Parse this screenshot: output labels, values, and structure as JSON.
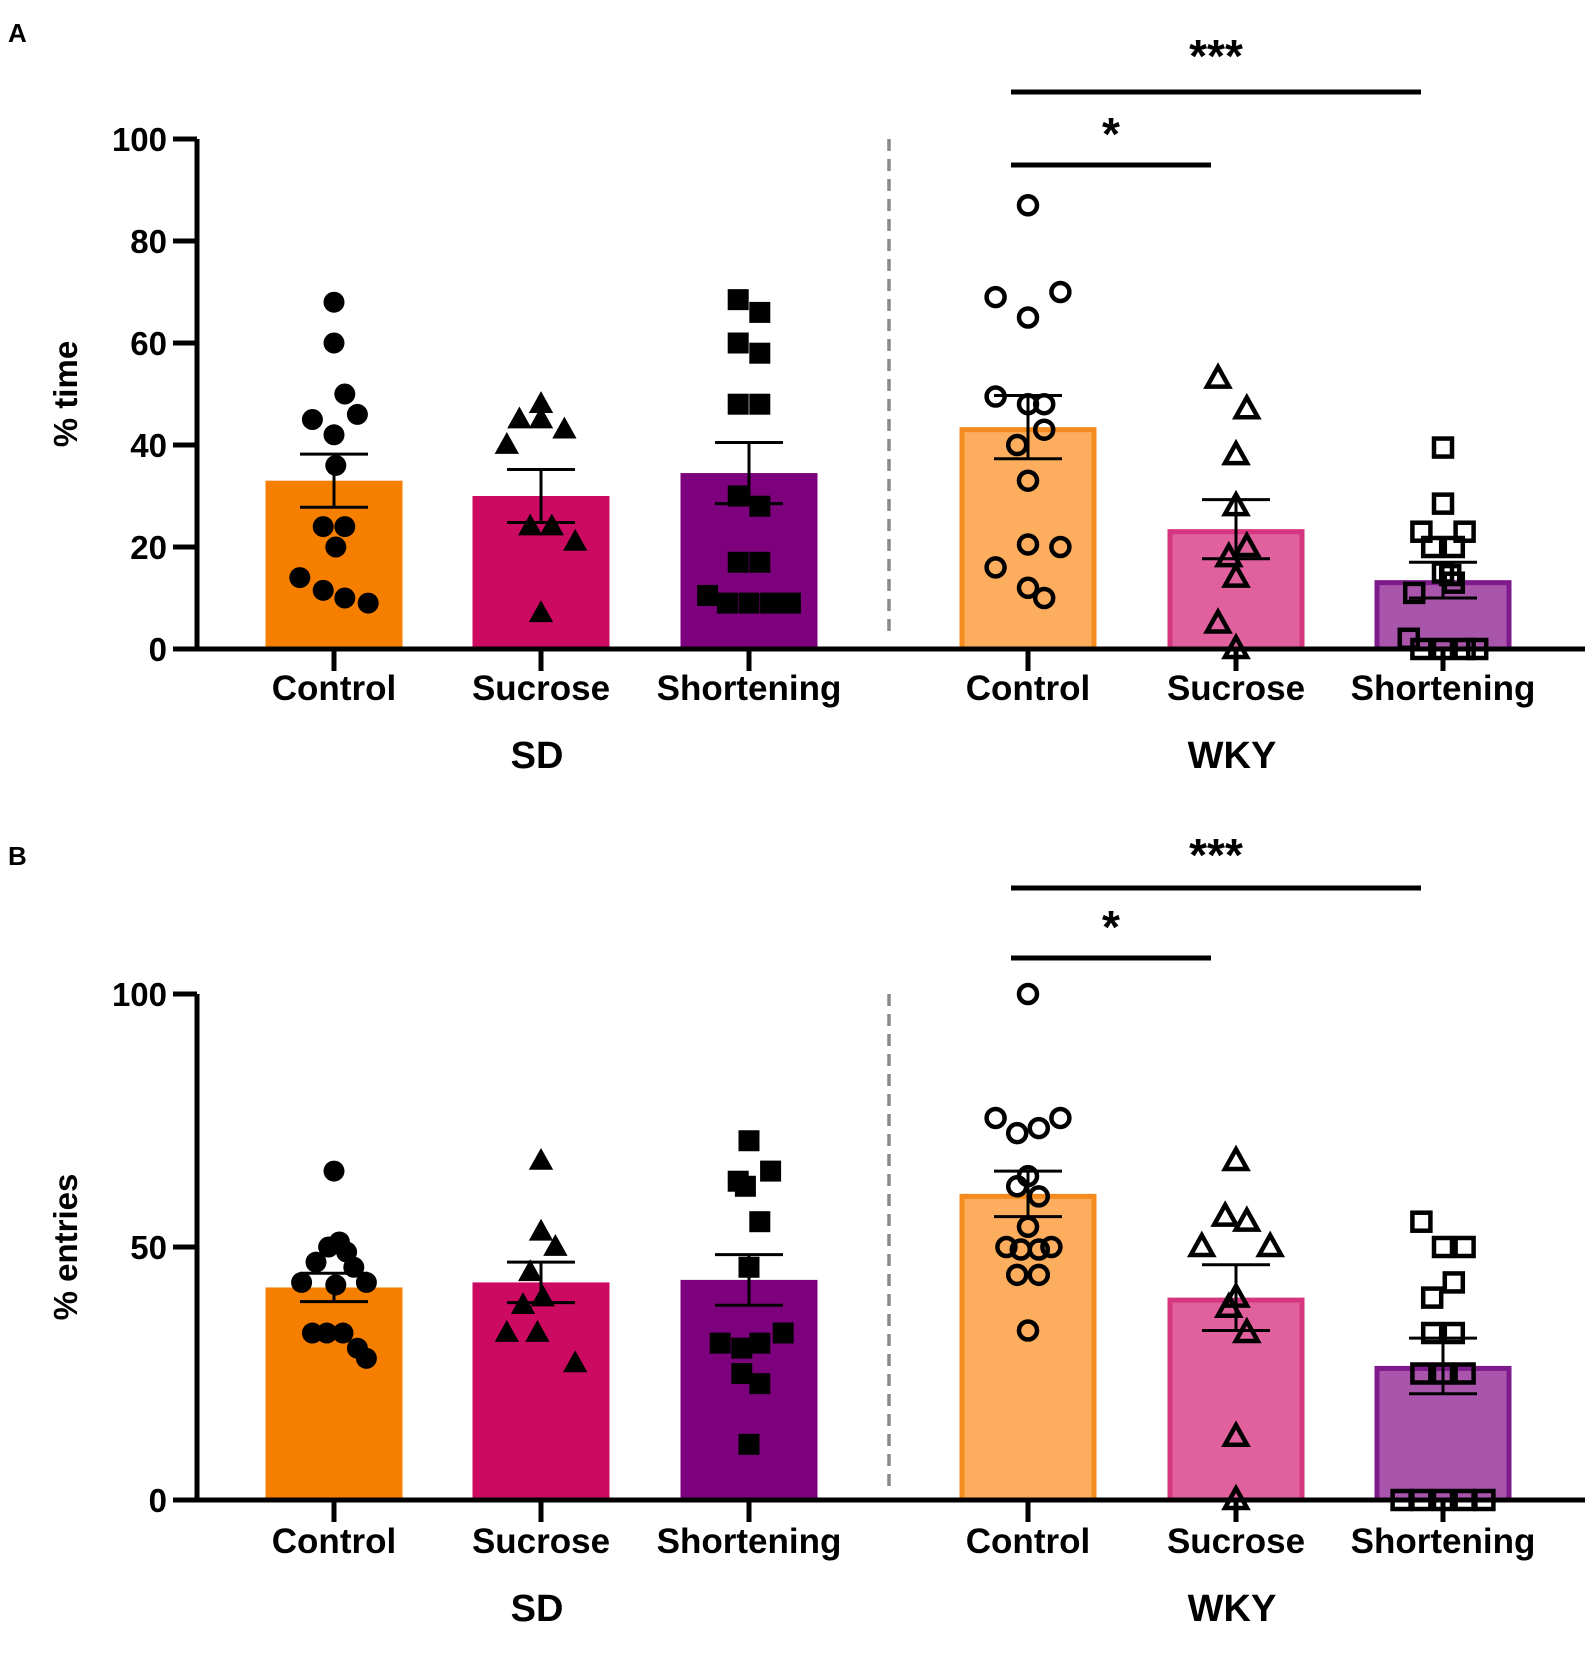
{
  "chart_data": [
    {
      "panel_label": "A",
      "type": "bar",
      "ylabel": "% time",
      "ylim": [
        0,
        100
      ],
      "yticks": [
        0,
        20,
        40,
        60,
        80,
        100
      ],
      "groups": [
        {
          "label": "SD",
          "strain": "SD",
          "bars": [
            {
              "category": "Control",
              "mean": 33,
              "sem": 5.2,
              "fill": "#F77F00",
              "edge": "#F77F00",
              "marker": "circle",
              "filled": true,
              "points": [
                [
                  0,
                  68
                ],
                [
                  0,
                  60
                ],
                [
                  0.3,
                  50
                ],
                [
                  -0.6,
                  45
                ],
                [
                  0.65,
                  46
                ],
                [
                  0,
                  42
                ],
                [
                  0.05,
                  36
                ],
                [
                  -0.3,
                  24
                ],
                [
                  0.3,
                  24
                ],
                [
                  0.05,
                  20
                ],
                [
                  -0.95,
                  14
                ],
                [
                  -0.3,
                  11.5
                ],
                [
                  0.3,
                  10
                ],
                [
                  0.95,
                  9
                ]
              ]
            },
            {
              "category": "Sucrose",
              "mean": 30,
              "sem": 5.2,
              "fill": "#CC0A62",
              "edge": "#CC0A62",
              "marker": "triangle",
              "filled": true,
              "points": [
                [
                  0,
                  48
                ],
                [
                  -0.6,
                  45
                ],
                [
                  0,
                  45
                ],
                [
                  0.65,
                  43
                ],
                [
                  -0.95,
                  40
                ],
                [
                  -0.3,
                  24
                ],
                [
                  0.3,
                  24
                ],
                [
                  0.95,
                  21
                ],
                [
                  0,
                  7
                ]
              ]
            },
            {
              "category": "Shortening",
              "mean": 34.5,
              "sem": 6,
              "fill": "#7D017D",
              "edge": "#7D017D",
              "marker": "square",
              "filled": true,
              "points": [
                [
                  -0.3,
                  68.5
                ],
                [
                  0.3,
                  66
                ],
                [
                  -0.3,
                  60
                ],
                [
                  0.3,
                  58
                ],
                [
                  -0.3,
                  48
                ],
                [
                  0.3,
                  48
                ],
                [
                  -0.3,
                  30
                ],
                [
                  0.3,
                  28
                ],
                [
                  -0.3,
                  17
                ],
                [
                  0.3,
                  17
                ],
                [
                  -1.15,
                  10.5
                ],
                [
                  -0.6,
                  9
                ],
                [
                  0,
                  9
                ],
                [
                  0.6,
                  9
                ],
                [
                  1.15,
                  9
                ]
              ]
            }
          ]
        },
        {
          "label": "WKY",
          "strain": "WKY",
          "bars": [
            {
              "category": "Control",
              "mean": 43.5,
              "sem": 6.2,
              "fill": "#FCAE5E",
              "edge": "#F58B1E",
              "marker": "circle",
              "filled": false,
              "points": [
                [
                  0,
                  87
                ],
                [
                  -0.9,
                  69
                ],
                [
                  0.9,
                  70
                ],
                [
                  0,
                  65
                ],
                [
                  -0.9,
                  49.5
                ],
                [
                  0,
                  48
                ],
                [
                  0.45,
                  48
                ],
                [
                  0.45,
                  43
                ],
                [
                  -0.3,
                  40
                ],
                [
                  0,
                  33
                ],
                [
                  -0.9,
                  16
                ],
                [
                  0,
                  20.5
                ],
                [
                  0.9,
                  20
                ],
                [
                  0,
                  12
                ],
                [
                  0.45,
                  10
                ]
              ]
            },
            {
              "category": "Sucrose",
              "mean": 23.5,
              "sem": 5.8,
              "fill": "#E0619E",
              "edge": "#D6357F",
              "marker": "triangle",
              "filled": false,
              "points": [
                [
                  -0.5,
                  53
                ],
                [
                  0.3,
                  47
                ],
                [
                  0,
                  38
                ],
                [
                  0,
                  28
                ],
                [
                  0.3,
                  20
                ],
                [
                  -0.2,
                  18
                ],
                [
                  0,
                  14
                ],
                [
                  -0.5,
                  5
                ],
                [
                  0,
                  0
                ]
              ]
            },
            {
              "category": "Shortening",
              "mean": 13.5,
              "sem": 3.5,
              "fill": "#A855AB",
              "edge": "#7E1A8C",
              "marker": "square",
              "filled": false,
              "points": [
                [
                  0,
                  39.5
                ],
                [
                  0,
                  28.5
                ],
                [
                  -0.6,
                  23
                ],
                [
                  0.6,
                  23
                ],
                [
                  -0.3,
                  20
                ],
                [
                  0.3,
                  20
                ],
                [
                  0,
                  15
                ],
                [
                  0.2,
                  14.5
                ],
                [
                  0.3,
                  13
                ],
                [
                  -0.8,
                  11
                ],
                [
                  -0.95,
                  2
                ],
                [
                  -0.6,
                  0
                ],
                [
                  0,
                  0
                ],
                [
                  0.6,
                  0
                ],
                [
                  0.95,
                  0
                ]
              ]
            }
          ]
        }
      ],
      "significance": [
        {
          "from": "WKY Control",
          "to": "WKY Sucrose",
          "label": "*"
        },
        {
          "from": "WKY Control",
          "to": "WKY Shortening",
          "label": "***"
        }
      ]
    },
    {
      "panel_label": "B",
      "type": "bar",
      "ylabel": "% entries",
      "ylim": [
        0,
        100
      ],
      "yticks": [
        0,
        50,
        100
      ],
      "groups": [
        {
          "label": "SD",
          "strain": "SD",
          "bars": [
            {
              "category": "Control",
              "mean": 42,
              "sem": 2.8,
              "fill": "#F77F00",
              "edge": "#F77F00",
              "marker": "circle",
              "filled": true,
              "points": [
                [
                  0,
                  65
                ],
                [
                  0.15,
                  51
                ],
                [
                  -0.15,
                  50
                ],
                [
                  0.35,
                  49
                ],
                [
                  -0.5,
                  47
                ],
                [
                  0.55,
                  46
                ],
                [
                  -0.9,
                  43
                ],
                [
                  0.05,
                  42.5
                ],
                [
                  0.9,
                  43
                ],
                [
                  -0.6,
                  33
                ],
                [
                  -0.2,
                  33
                ],
                [
                  0.25,
                  33
                ],
                [
                  0.65,
                  30
                ],
                [
                  0.9,
                  28
                ]
              ]
            },
            {
              "category": "Sucrose",
              "mean": 43,
              "sem": 4,
              "fill": "#CC0A62",
              "edge": "#CC0A62",
              "marker": "triangle",
              "filled": true,
              "points": [
                [
                  0,
                  67
                ],
                [
                  0,
                  53
                ],
                [
                  0.4,
                  50
                ],
                [
                  -0.3,
                  45
                ],
                [
                  0.05,
                  40
                ],
                [
                  -0.5,
                  38.5
                ],
                [
                  -0.95,
                  33
                ],
                [
                  -0.1,
                  33
                ],
                [
                  0.95,
                  27
                ]
              ]
            },
            {
              "category": "Shortening",
              "mean": 43.5,
              "sem": 5,
              "fill": "#7D017D",
              "edge": "#7D017D",
              "marker": "square",
              "filled": true,
              "points": [
                [
                  0,
                  71
                ],
                [
                  -0.3,
                  63
                ],
                [
                  0.6,
                  65
                ],
                [
                  -0.1,
                  62
                ],
                [
                  0.3,
                  55
                ],
                [
                  0,
                  46
                ],
                [
                  -0.8,
                  31
                ],
                [
                  -0.2,
                  30
                ],
                [
                  0.3,
                  31
                ],
                [
                  0.95,
                  33
                ],
                [
                  -0.2,
                  25
                ],
                [
                  0.3,
                  23
                ],
                [
                  0,
                  11
                ]
              ]
            }
          ]
        },
        {
          "label": "WKY",
          "strain": "WKY",
          "bars": [
            {
              "category": "Control",
              "mean": 60.5,
              "sem": 4.5,
              "fill": "#FCAE5E",
              "edge": "#F58B1E",
              "marker": "circle",
              "filled": false,
              "points": [
                [
                  0,
                  100
                ],
                [
                  -0.9,
                  75.5
                ],
                [
                  -0.3,
                  72.5
                ],
                [
                  0.3,
                  73.5
                ],
                [
                  0.9,
                  75.5
                ],
                [
                  0,
                  64
                ],
                [
                  -0.3,
                  62
                ],
                [
                  0.3,
                  60
                ],
                [
                  0,
                  54
                ],
                [
                  -0.6,
                  50
                ],
                [
                  -0.2,
                  49.5
                ],
                [
                  0.3,
                  49.5
                ],
                [
                  0.65,
                  50
                ],
                [
                  -0.3,
                  44.5
                ],
                [
                  0.3,
                  44.5
                ],
                [
                  0,
                  33.5
                ]
              ]
            },
            {
              "category": "Sucrose",
              "mean": 40,
              "sem": 6.5,
              "fill": "#E0619E",
              "edge": "#D6357F",
              "marker": "triangle",
              "filled": false,
              "points": [
                [
                  0,
                  67
                ],
                [
                  -0.3,
                  56
                ],
                [
                  0.3,
                  55
                ],
                [
                  -0.95,
                  50
                ],
                [
                  0.95,
                  50
                ],
                [
                  0,
                  40
                ],
                [
                  -0.2,
                  38
                ],
                [
                  0.3,
                  33
                ],
                [
                  0,
                  12.5
                ],
                [
                  0,
                  0
                ]
              ]
            },
            {
              "category": "Shortening",
              "mean": 26.5,
              "sem": 5.5,
              "fill": "#A855AB",
              "edge": "#7E1A8C",
              "marker": "square",
              "filled": false,
              "points": [
                [
                  -0.6,
                  55
                ],
                [
                  0,
                  50
                ],
                [
                  0.6,
                  50
                ],
                [
                  0.3,
                  43
                ],
                [
                  -0.3,
                  40
                ],
                [
                  -0.3,
                  33
                ],
                [
                  0.3,
                  33
                ],
                [
                  -0.6,
                  25
                ],
                [
                  0,
                  25
                ],
                [
                  0.6,
                  25
                ],
                [
                  -1.15,
                  0
                ],
                [
                  -0.6,
                  0
                ],
                [
                  0,
                  0
                ],
                [
                  0.6,
                  0
                ],
                [
                  1.15,
                  0
                ]
              ]
            }
          ]
        }
      ],
      "significance": [
        {
          "from": "WKY Control",
          "to": "WKY Sucrose",
          "label": "*"
        },
        {
          "from": "WKY Control",
          "to": "WKY Shortening",
          "label": "***"
        }
      ]
    }
  ]
}
